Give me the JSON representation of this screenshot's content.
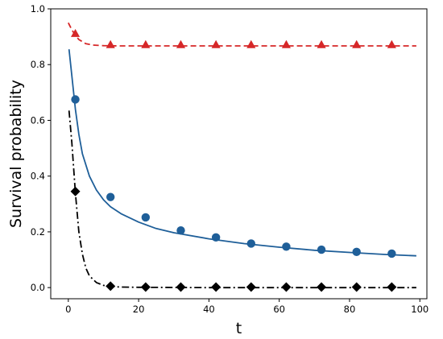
{
  "chart_data": {
    "type": "line",
    "title": "",
    "xlabel": "t",
    "ylabel": "Survival probability",
    "xlim": [
      -5,
      102
    ],
    "ylim": [
      -0.04,
      1.0
    ],
    "xticks": [
      0,
      20,
      40,
      60,
      80,
      100
    ],
    "yticks": [
      0.0,
      0.2,
      0.4,
      0.6,
      0.8,
      1.0
    ],
    "xtick_labels": [
      "0",
      "20",
      "40",
      "60",
      "80",
      "100"
    ],
    "ytick_labels": [
      "0.0",
      "0.2",
      "0.4",
      "0.6",
      "0.8",
      "1.0"
    ],
    "grid": false,
    "legend": "none",
    "series": [
      {
        "color": "#d62728",
        "line_style": "dashed",
        "marker": "triangle",
        "x": [
          2,
          12,
          22,
          32,
          42,
          52,
          62,
          72,
          82,
          92
        ],
        "y": [
          0.91,
          0.87,
          0.87,
          0.87,
          0.87,
          0.87,
          0.87,
          0.87,
          0.87,
          0.87
        ],
        "curve": {
          "x": [
            0,
            1,
            2,
            3,
            5,
            7,
            10,
            15,
            20,
            30,
            50,
            75,
            99
          ],
          "y": [
            0.95,
            0.925,
            0.905,
            0.89,
            0.875,
            0.87,
            0.868,
            0.867,
            0.867,
            0.867,
            0.867,
            0.867,
            0.867
          ]
        }
      },
      {
        "color": "#1f5f99",
        "line_style": "solid",
        "marker": "circle",
        "x": [
          2,
          12,
          22,
          32,
          42,
          52,
          62,
          72,
          82,
          92
        ],
        "y": [
          0.675,
          0.325,
          0.252,
          0.205,
          0.18,
          0.158,
          0.147,
          0.136,
          0.128,
          0.122
        ],
        "curve": {
          "x": [
            0.2,
            1,
            2,
            3,
            4,
            6,
            8,
            10,
            12,
            15,
            20,
            25,
            30,
            40,
            50,
            60,
            70,
            80,
            90,
            99
          ],
          "y": [
            0.855,
            0.76,
            0.64,
            0.55,
            0.48,
            0.4,
            0.35,
            0.315,
            0.29,
            0.265,
            0.235,
            0.212,
            0.197,
            0.175,
            0.158,
            0.145,
            0.134,
            0.126,
            0.119,
            0.114
          ]
        }
      },
      {
        "color": "#000000",
        "line_style": "dashdot",
        "marker": "diamond",
        "x": [
          2,
          12,
          22,
          32,
          42,
          52,
          62,
          72,
          82,
          92
        ],
        "y": [
          0.345,
          0.005,
          0.002,
          0.002,
          0.002,
          0.002,
          0.002,
          0.002,
          0.002,
          0.002
        ],
        "curve": {
          "x": [
            0.2,
            1,
            2,
            3,
            4,
            5,
            6,
            8,
            10,
            12,
            15,
            20,
            40,
            60,
            80,
            99
          ],
          "y": [
            0.635,
            0.52,
            0.34,
            0.2,
            0.12,
            0.07,
            0.042,
            0.018,
            0.008,
            0.004,
            0.002,
            0.001,
            0.0,
            0.0,
            0.0,
            0.0
          ]
        }
      }
    ]
  }
}
